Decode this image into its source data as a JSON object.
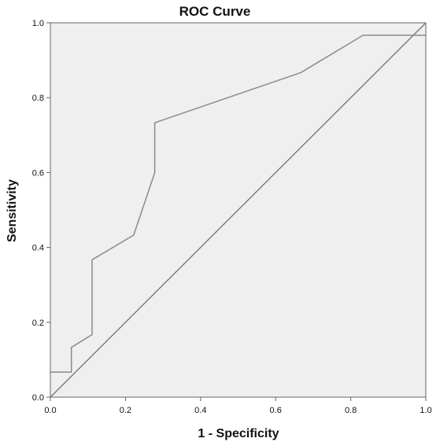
{
  "chart_data": {
    "type": "line",
    "title": "ROC Curve",
    "xlabel": "1 - Specificity",
    "ylabel": "Sensitivity",
    "xlim": [
      0,
      1
    ],
    "ylim": [
      0,
      1
    ],
    "x_ticks": [
      "0.0",
      "0.2",
      "0.4",
      "0.6",
      "0.8",
      "1.0"
    ],
    "y_ticks": [
      "0.0",
      "0.2",
      "0.4",
      "0.6",
      "0.8",
      "1.0"
    ],
    "grid": false,
    "legend": "none",
    "colors": {
      "plot_background": "#efefef",
      "curve": "#8a8a8a",
      "reference_line": "#7f7f7f",
      "frame": "#666666"
    },
    "series": [
      {
        "x": [
          0.0,
          0.056,
          0.056,
          0.111,
          0.111,
          0.222,
          0.278,
          0.278,
          0.667,
          0.833,
          1.0
        ],
        "y": [
          0.067,
          0.067,
          0.133,
          0.167,
          0.367,
          0.433,
          0.6,
          0.733,
          0.867,
          0.967,
          0.967
        ]
      },
      {
        "x": [
          0.0,
          1.0
        ],
        "y": [
          0.0,
          1.0
        ]
      }
    ]
  }
}
